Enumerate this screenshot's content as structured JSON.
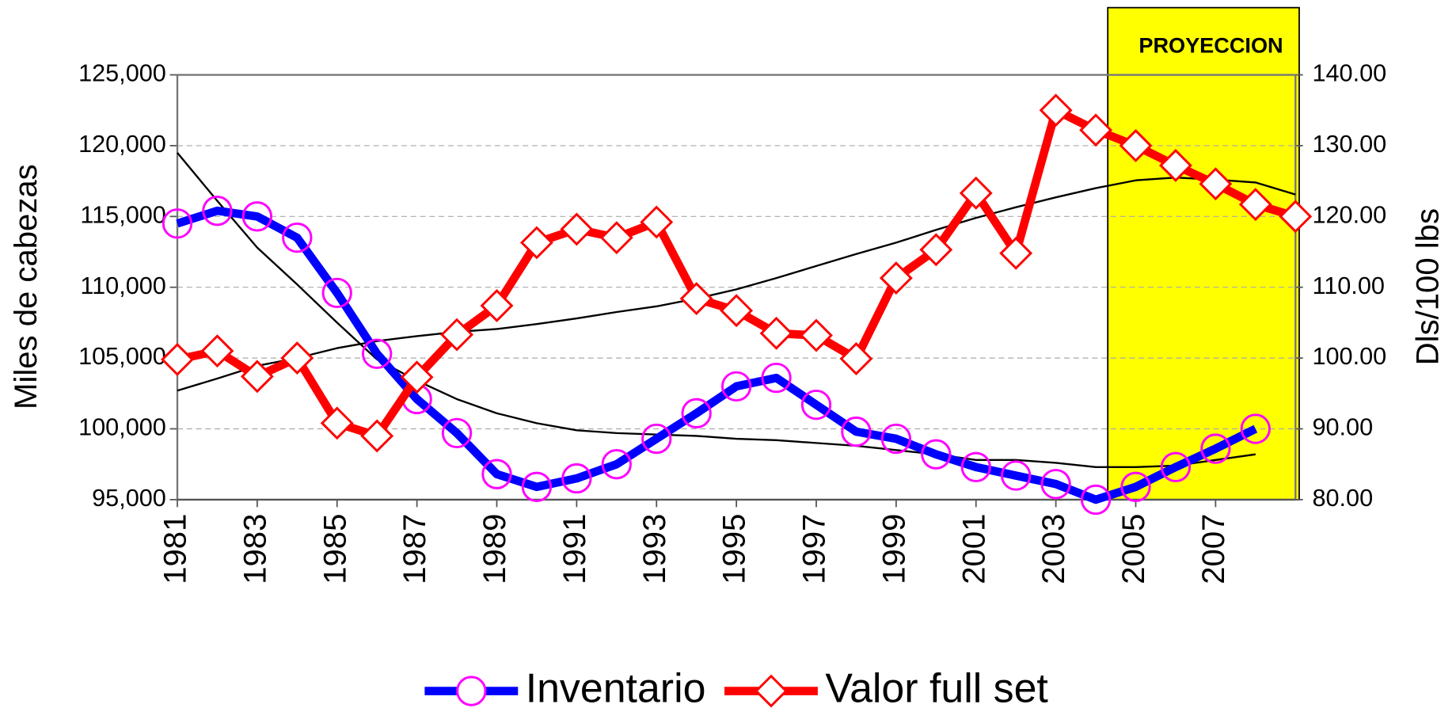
{
  "chart_data": {
    "type": "line",
    "y_label": "Miles de cabezas",
    "y2_label": "Dls/100 lbs",
    "x": [
      1981,
      1982,
      1983,
      1984,
      1985,
      1986,
      1987,
      1988,
      1989,
      1990,
      1991,
      1992,
      1993,
      1994,
      1995,
      1996,
      1997,
      1998,
      1999,
      2000,
      2001,
      2002,
      2003,
      2004,
      2005,
      2006,
      2007,
      2008,
      2009
    ],
    "xlim": [
      1981,
      2009
    ],
    "xticks": [
      1981,
      1983,
      1985,
      1987,
      1989,
      1991,
      1993,
      1995,
      1997,
      1999,
      2001,
      2003,
      2005,
      2007
    ],
    "ylim": [
      95000,
      125000
    ],
    "yticks": [
      {
        "value": 95000,
        "label": "95,000"
      },
      {
        "value": 100000,
        "label": "100,000"
      },
      {
        "value": 105000,
        "label": "105,000"
      },
      {
        "value": 110000,
        "label": "110,000"
      },
      {
        "value": 115000,
        "label": "115,000"
      },
      {
        "value": 120000,
        "label": "120,000"
      },
      {
        "value": 125000,
        "label": "125,000"
      }
    ],
    "y2lim": [
      80,
      140
    ],
    "y2ticks": [
      {
        "value": 80,
        "label": "80.00"
      },
      {
        "value": 90,
        "label": "90.00"
      },
      {
        "value": 100,
        "label": "100.00"
      },
      {
        "value": 110,
        "label": "110.00"
      },
      {
        "value": 120,
        "label": "120.00"
      },
      {
        "value": 130,
        "label": "130.00"
      },
      {
        "value": 140,
        "label": "140.00"
      }
    ],
    "grid": true,
    "projection": {
      "label": "PROYECCION",
      "from": 2004.3,
      "to": 2009,
      "color": "#ffff00"
    },
    "series": [
      {
        "name": "Inventario",
        "color": "#0000ff",
        "marker": "circle",
        "marker_color": "#ff00ff",
        "axis": "y",
        "values": [
          114500,
          115400,
          115000,
          113500,
          109600,
          105300,
          102100,
          99700,
          96800,
          95900,
          96500,
          97500,
          99300,
          101100,
          103000,
          103600,
          101700,
          99800,
          99300,
          98200,
          97300,
          96700,
          96100,
          95000,
          95900,
          97300,
          98600,
          100000,
          null
        ]
      },
      {
        "name": "Valor full set",
        "color": "#ff0000",
        "marker": "diamond",
        "marker_color": "#ff0000",
        "axis": "y2",
        "values": [
          99.8,
          101,
          97.4,
          100,
          90.8,
          89,
          97.3,
          103.3,
          107.4,
          116.3,
          118.2,
          117,
          119.2,
          108.4,
          106.7,
          103.5,
          103.2,
          99.9,
          111.3,
          115.3,
          123.3,
          114.8,
          135,
          132.2,
          130,
          127.2,
          124.6,
          121.7,
          120
        ]
      },
      {
        "color": "#000000",
        "axis": "y",
        "values": [
          119500,
          116100,
          112800,
          110200,
          107500,
          104900,
          103400,
          102100,
          101100,
          100400,
          99900,
          99700,
          99600,
          99500,
          99300,
          99200,
          99000,
          98800,
          98500,
          98200,
          97800,
          97800,
          97600,
          97300,
          97300,
          97400,
          97800,
          98200,
          null
        ]
      },
      {
        "color": "#000000",
        "axis": "y2",
        "values": [
          95.4,
          97.1,
          98.9,
          100,
          101.4,
          102.4,
          103.1,
          103.7,
          104.1,
          104.8,
          105.6,
          106.5,
          107.3,
          108.4,
          109.7,
          111.3,
          113,
          114.7,
          116.3,
          118.1,
          119.8,
          121.3,
          122.7,
          124,
          125.1,
          125.5,
          125.2,
          124.8,
          123.1
        ]
      }
    ]
  }
}
